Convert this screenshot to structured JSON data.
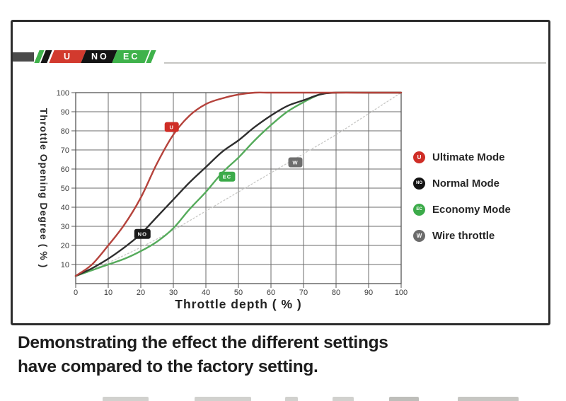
{
  "figure": {
    "logo": {
      "segments": [
        {
          "text": "U",
          "bg": "#d23a2e"
        },
        {
          "text": "NO",
          "bg": "#141414"
        },
        {
          "text": "EC",
          "bg": "#3fb24b"
        }
      ]
    },
    "caption": {
      "line1": "Demonstrating the effect the different settings",
      "line2": "have compared to the factory setting."
    }
  },
  "legend": {
    "items": [
      {
        "label": "Ultimate Mode",
        "color": "#cf2d26",
        "icon_text": "U"
      },
      {
        "label": "Normal Mode",
        "color": "#141414",
        "icon_text": "NO"
      },
      {
        "label": "Economy Mode",
        "color": "#3cab4a",
        "icon_text": "EC"
      },
      {
        "label": "Wire throttle",
        "color": "#6b6b6b",
        "icon_text": "W"
      }
    ]
  },
  "chart_data": {
    "type": "line",
    "title": "",
    "xlabel": "Throttle depth ( % )",
    "ylabel": "Throttle Opening Degree ( % )",
    "xlim": [
      0,
      100
    ],
    "ylim": [
      0,
      100
    ],
    "x_ticks": [
      0,
      10,
      20,
      30,
      40,
      50,
      60,
      70,
      80,
      90,
      100
    ],
    "y_ticks": [
      10,
      20,
      30,
      40,
      50,
      60,
      70,
      80,
      90,
      100
    ],
    "grid": true,
    "legend_position": "right",
    "series": [
      {
        "name": "Ultimate Mode",
        "color": "#b5433c",
        "style": "solid",
        "points": [
          [
            0,
            4
          ],
          [
            5,
            10
          ],
          [
            10,
            20
          ],
          [
            15,
            31
          ],
          [
            20,
            45
          ],
          [
            25,
            63
          ],
          [
            30,
            78
          ],
          [
            35,
            88
          ],
          [
            40,
            94
          ],
          [
            45,
            97
          ],
          [
            50,
            99
          ],
          [
            55,
            100
          ],
          [
            60,
            100
          ],
          [
            70,
            100
          ],
          [
            80,
            100
          ],
          [
            90,
            100
          ],
          [
            100,
            100
          ]
        ]
      },
      {
        "name": "Normal Mode",
        "color": "#2e2e2e",
        "style": "solid",
        "points": [
          [
            0,
            4
          ],
          [
            5,
            8
          ],
          [
            10,
            13
          ],
          [
            15,
            19
          ],
          [
            20,
            26
          ],
          [
            25,
            35
          ],
          [
            30,
            44
          ],
          [
            35,
            53
          ],
          [
            40,
            61
          ],
          [
            45,
            69
          ],
          [
            50,
            75
          ],
          [
            55,
            82
          ],
          [
            60,
            88
          ],
          [
            65,
            93
          ],
          [
            70,
            96
          ],
          [
            75,
            99
          ],
          [
            80,
            100
          ],
          [
            90,
            100
          ],
          [
            100,
            100
          ]
        ]
      },
      {
        "name": "Economy Mode",
        "color": "#55ab5b",
        "style": "solid",
        "points": [
          [
            0,
            4
          ],
          [
            5,
            7
          ],
          [
            10,
            10
          ],
          [
            15,
            13
          ],
          [
            20,
            17
          ],
          [
            25,
            22
          ],
          [
            30,
            29
          ],
          [
            35,
            39
          ],
          [
            40,
            48
          ],
          [
            45,
            58
          ],
          [
            50,
            66
          ],
          [
            55,
            75
          ],
          [
            60,
            83
          ],
          [
            65,
            90
          ],
          [
            70,
            95
          ],
          [
            75,
            99
          ],
          [
            80,
            100
          ],
          [
            90,
            100
          ],
          [
            100,
            100
          ]
        ]
      },
      {
        "name": "Wire throttle",
        "color": "#c8c8c6",
        "style": "dotted",
        "points": [
          [
            0,
            4
          ],
          [
            10,
            11
          ],
          [
            20,
            19
          ],
          [
            30,
            28
          ],
          [
            40,
            38
          ],
          [
            50,
            48
          ],
          [
            60,
            58
          ],
          [
            70,
            68
          ],
          [
            80,
            78
          ],
          [
            90,
            89
          ],
          [
            100,
            100
          ]
        ]
      }
    ],
    "curve_badges": [
      {
        "label": "U",
        "bg": "#cf2d26",
        "x": 29.5,
        "y": 82
      },
      {
        "label": "NO",
        "bg": "#1b1b1b",
        "x": 20.5,
        "y": 26
      },
      {
        "label": "EC",
        "bg": "#3cab4a",
        "x": 46.5,
        "y": 56
      },
      {
        "label": "W",
        "bg": "#6e6e6e",
        "x": 67.5,
        "y": 63.5
      }
    ]
  }
}
